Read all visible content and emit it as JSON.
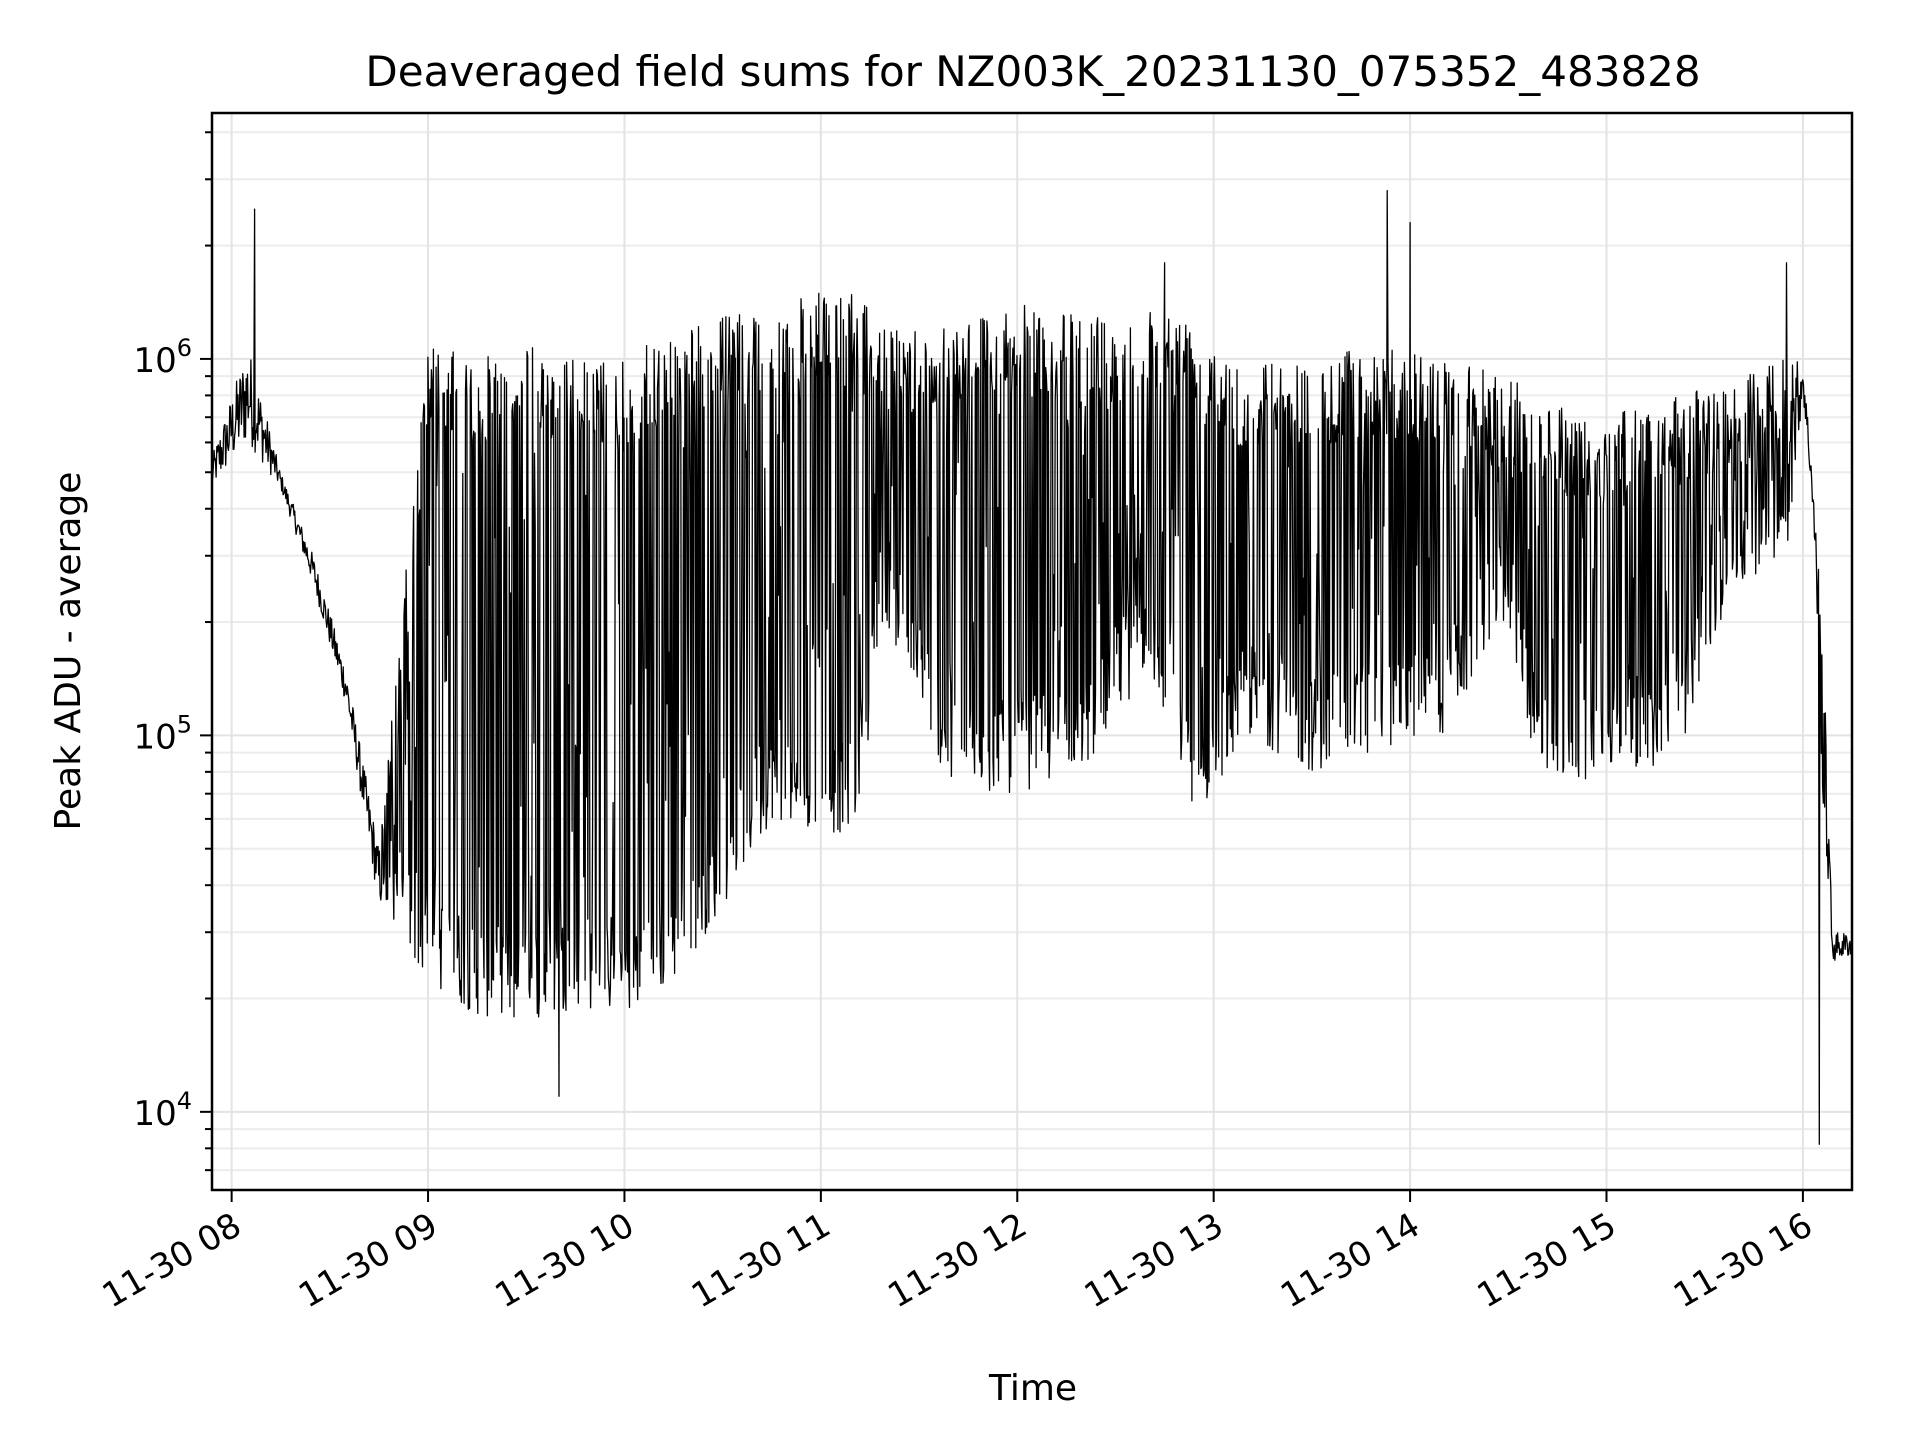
{
  "chart_data": {
    "type": "line",
    "title": "Deaveraged field sums for NZ003K_20231130_075352_483828",
    "xlabel": "Time",
    "ylabel": "Peak ADU - average",
    "yscale": "log",
    "grid": true,
    "ylim": [
      6200,
      4500000
    ],
    "xlim": [
      "2023-11-30 07:54",
      "2023-11-30 16:15"
    ],
    "x_ticks": [
      {
        "time": "2023-11-30 08:00",
        "label": "11-30 08"
      },
      {
        "time": "2023-11-30 09:00",
        "label": "11-30 09"
      },
      {
        "time": "2023-11-30 10:00",
        "label": "11-30 10"
      },
      {
        "time": "2023-11-30 11:00",
        "label": "11-30 11"
      },
      {
        "time": "2023-11-30 12:00",
        "label": "11-30 12"
      },
      {
        "time": "2023-11-30 13:00",
        "label": "11-30 13"
      },
      {
        "time": "2023-11-30 14:00",
        "label": "11-30 14"
      },
      {
        "time": "2023-11-30 15:00",
        "label": "11-30 15"
      },
      {
        "time": "2023-11-30 16:00",
        "label": "11-30 16"
      }
    ],
    "y_ticks": [
      {
        "value": 10000,
        "base": "10",
        "exp": "4"
      },
      {
        "value": 100000,
        "base": "10",
        "exp": "5"
      },
      {
        "value": 1000000,
        "base": "10",
        "exp": "6"
      }
    ],
    "series_color": "#000000",
    "envelope": {
      "x": [
        "2023-11-30 07:54",
        "2023-11-30 08:05",
        "2023-11-30 08:15",
        "2023-11-30 08:25",
        "2023-11-30 08:35",
        "2023-11-30 08:45",
        "2023-11-30 09:00",
        "2023-11-30 09:15",
        "2023-11-30 09:30",
        "2023-11-30 09:45",
        "2023-11-30 10:00",
        "2023-11-30 10:15",
        "2023-11-30 10:30",
        "2023-11-30 10:45",
        "2023-11-30 11:00",
        "2023-11-30 11:10",
        "2023-11-30 11:20",
        "2023-11-30 11:40",
        "2023-11-30 12:00",
        "2023-11-30 12:20",
        "2023-11-30 12:40",
        "2023-11-30 12:55",
        "2023-11-30 13:10",
        "2023-11-30 13:30",
        "2023-11-30 13:50",
        "2023-11-30 14:10",
        "2023-11-30 14:30",
        "2023-11-30 14:40",
        "2023-11-30 15:00",
        "2023-11-30 15:20",
        "2023-11-30 15:40",
        "2023-11-30 15:55",
        "2023-11-30 16:00",
        "2023-11-30 16:03",
        "2023-11-30 16:06",
        "2023-11-30 16:09",
        "2023-11-30 16:15"
      ],
      "low": [
        450000,
        600000,
        450000,
        250000,
        120000,
        35000,
        22000,
        18000,
        17000,
        19000,
        18000,
        22000,
        35000,
        60000,
        55000,
        55000,
        200000,
        70000,
        70000,
        80000,
        150000,
        60000,
        100000,
        80000,
        90000,
        100000,
        200000,
        70000,
        80000,
        80000,
        250000,
        300000,
        800000,
        400000,
        70000,
        25000,
        26000
      ],
      "high": [
        550000,
        1100000,
        500000,
        300000,
        150000,
        50000,
        1100000,
        1000000,
        1100000,
        1000000,
        1000000,
        1200000,
        1300000,
        1400000,
        1500000,
        1500000,
        1200000,
        1300000,
        1400000,
        1300000,
        1400000,
        1300000,
        1000000,
        1000000,
        1100000,
        1000000,
        900000,
        800000,
        700000,
        800000,
        900000,
        1000000,
        1000000,
        500000,
        200000,
        30000,
        30000
      ]
    },
    "peaks": [
      {
        "x": "2023-11-30 08:07",
        "y": 2500000
      },
      {
        "x": "2023-11-30 12:45",
        "y": 1800000
      },
      {
        "x": "2023-11-30 13:53",
        "y": 2800000
      },
      {
        "x": "2023-11-30 14:00",
        "y": 2300000
      },
      {
        "x": "2023-11-30 15:55",
        "y": 1800000
      }
    ],
    "troughs": [
      {
        "x": "2023-11-30 09:40",
        "y": 11000
      },
      {
        "x": "2023-11-30 16:05",
        "y": 8200
      }
    ]
  }
}
